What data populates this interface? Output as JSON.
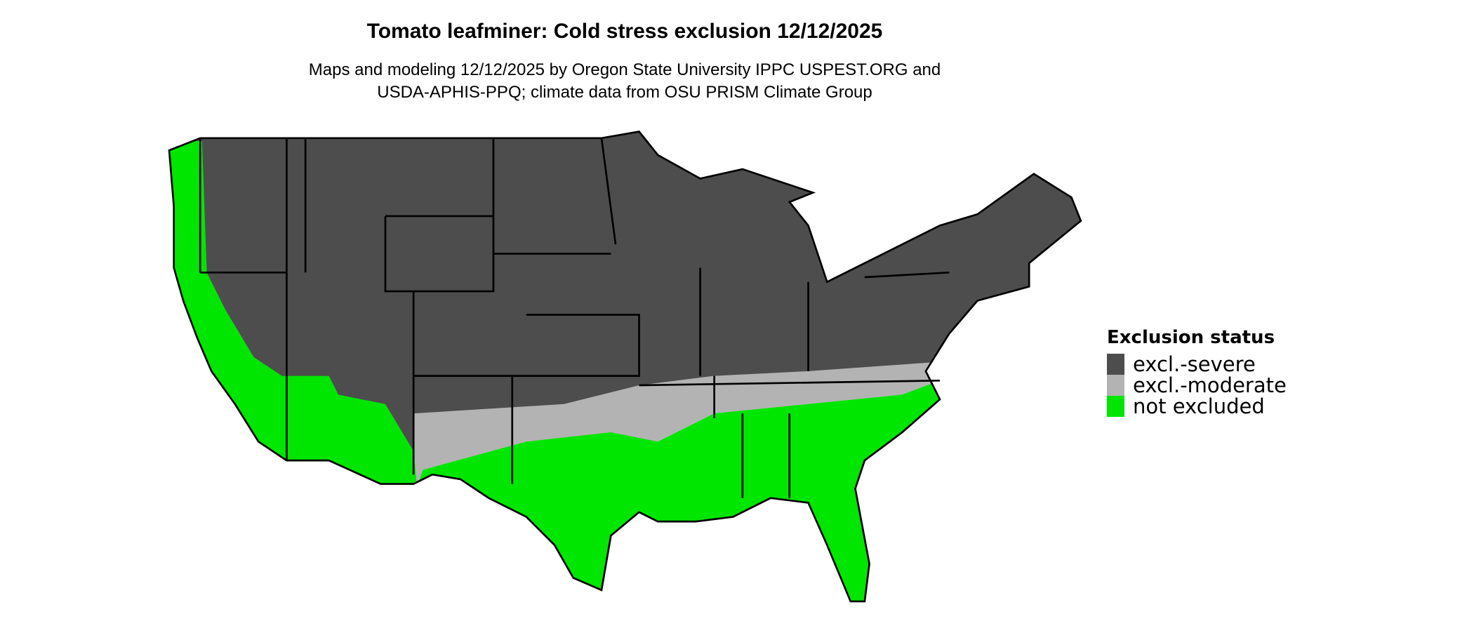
{
  "title": "Tomato leafminer: Cold stress exclusion 12/12/2025",
  "subtitle_lines": [
    "Maps and modeling 12/12/2025 by Oregon State University IPPC USPEST.ORG and",
    "USDA-APHIS-PPQ; climate data from OSU PRISM Climate Group"
  ],
  "legend": {
    "title": "Exclusion status",
    "items": [
      {
        "label": "excl.-severe",
        "color": "#4d4d4d"
      },
      {
        "label": "excl.-moderate",
        "color": "#b3b3b3"
      },
      {
        "label": "not excluded",
        "color": "#00e600"
      }
    ]
  }
}
